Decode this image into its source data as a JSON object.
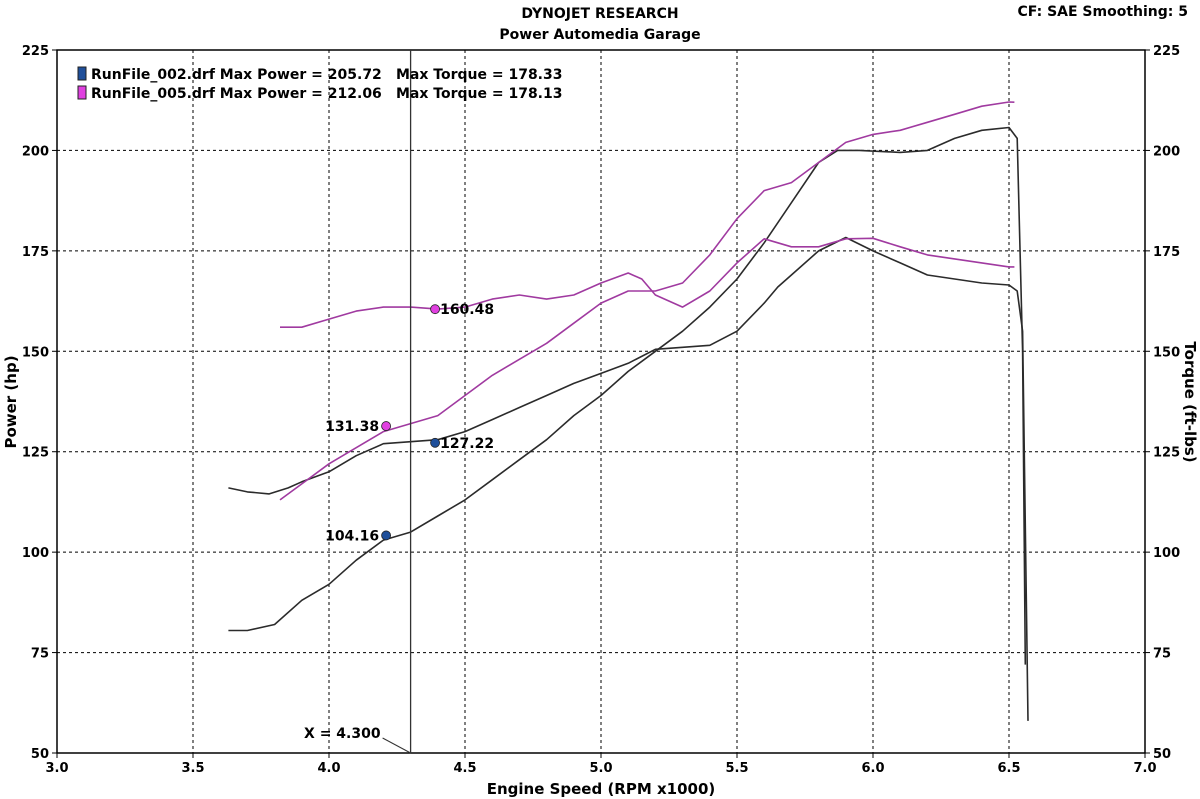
{
  "header": {
    "title": "DYNOJET RESEARCH",
    "subtitle": "Power Automedia Garage",
    "corner": "CF: SAE  Smoothing: 5"
  },
  "colors": {
    "run1": "#2b2b2b",
    "run2": "#a03aa0",
    "run1_marker": "#1f4f9a",
    "run2_marker": "#e040e0",
    "grid": "#000000",
    "background": "#ffffff"
  },
  "chart_data": {
    "type": "line",
    "xlabel": "Engine Speed (RPM x1000)",
    "ylabel_left": "Power (hp)",
    "ylabel_right": "Torque (ft-lbs)",
    "xlim": [
      3.0,
      7.0
    ],
    "ylim": [
      50,
      225
    ],
    "x_ticks": [
      "3.0",
      "3.5",
      "4.0",
      "4.5",
      "5.0",
      "5.5",
      "6.0",
      "6.5",
      "7.0"
    ],
    "y_ticks": [
      "50",
      "75",
      "100",
      "125",
      "150",
      "175",
      "200",
      "225"
    ],
    "grid": true,
    "cursor": {
      "x": 4.3,
      "label": "X = 4.300"
    },
    "legend": [
      {
        "text": "RunFile_002.drf Max Power = 205.72",
        "torque_text": "Max Torque = 178.33"
      },
      {
        "text": "RunFile_005.drf Max Power = 212.06",
        "torque_text": "Max Torque = 178.13"
      }
    ],
    "series": [
      {
        "name": "RunFile_002.drf",
        "quantity": "power",
        "x": [
          3.63,
          3.7,
          3.8,
          3.9,
          4.0,
          4.1,
          4.2,
          4.3,
          4.4,
          4.5,
          4.6,
          4.7,
          4.8,
          4.9,
          5.0,
          5.1,
          5.2,
          5.3,
          5.4,
          5.5,
          5.6,
          5.7,
          5.8,
          5.87,
          5.95,
          6.1,
          6.2,
          6.3,
          6.4,
          6.5,
          6.53,
          6.55,
          6.56
        ],
        "y": [
          80.5,
          80.5,
          82,
          88,
          92,
          98,
          103,
          105,
          109,
          113,
          118,
          123,
          128,
          134,
          139,
          145,
          150,
          155,
          161,
          168,
          177,
          187,
          197,
          200,
          200,
          199.5,
          200,
          203,
          205,
          205.72,
          203,
          150,
          72
        ]
      },
      {
        "name": "RunFile_002.drf",
        "quantity": "torque",
        "x": [
          3.63,
          3.7,
          3.78,
          3.85,
          3.9,
          4.0,
          4.1,
          4.2,
          4.3,
          4.4,
          4.5,
          4.6,
          4.7,
          4.8,
          4.9,
          5.0,
          5.1,
          5.2,
          5.3,
          5.4,
          5.5,
          5.6,
          5.65,
          5.7,
          5.8,
          5.9,
          6.0,
          6.1,
          6.2,
          6.3,
          6.4,
          6.5,
          6.53,
          6.55,
          6.57
        ],
        "y": [
          116,
          115,
          114.5,
          116,
          117.5,
          120,
          124,
          127,
          127.5,
          128,
          130,
          133,
          136,
          139,
          142,
          144.5,
          147,
          150.5,
          151,
          151.5,
          155,
          162,
          166,
          169,
          175,
          178.33,
          175,
          172,
          169,
          168,
          167,
          166.5,
          165,
          155,
          58
        ]
      },
      {
        "name": "RunFile_005.drf",
        "quantity": "power",
        "x": [
          3.82,
          3.9,
          4.0,
          4.1,
          4.2,
          4.3,
          4.4,
          4.5,
          4.6,
          4.7,
          4.8,
          4.9,
          5.0,
          5.1,
          5.2,
          5.3,
          5.4,
          5.5,
          5.6,
          5.7,
          5.8,
          5.9,
          6.0,
          6.1,
          6.2,
          6.3,
          6.4,
          6.5,
          6.52
        ],
        "y": [
          113,
          117,
          122,
          126,
          130,
          132,
          134,
          139,
          144,
          148,
          152,
          157,
          162,
          165,
          165,
          167,
          174,
          183,
          190,
          192,
          197,
          202,
          204,
          205,
          207,
          209,
          211,
          212.06,
          212
        ]
      },
      {
        "name": "RunFile_005.drf",
        "quantity": "torque",
        "x": [
          3.82,
          3.9,
          4.0,
          4.1,
          4.2,
          4.3,
          4.4,
          4.5,
          4.6,
          4.7,
          4.8,
          4.9,
          5.0,
          5.1,
          5.15,
          5.2,
          5.3,
          5.4,
          5.5,
          5.6,
          5.7,
          5.8,
          5.9,
          6.0,
          6.1,
          6.2,
          6.3,
          6.4,
          6.5,
          6.52
        ],
        "y": [
          156,
          156,
          158,
          160,
          161,
          161,
          160.5,
          161,
          163,
          164,
          163,
          164,
          167,
          169.5,
          168,
          164,
          161,
          165,
          172,
          178,
          176,
          176,
          178,
          178.13,
          176,
          174,
          173,
          172,
          171,
          171
        ]
      }
    ],
    "markers": [
      {
        "x": 4.39,
        "y": 160.48,
        "label": "160.48",
        "series": "run2",
        "label_side": "right"
      },
      {
        "x": 4.21,
        "y": 131.38,
        "label": "131.38",
        "series": "run2",
        "label_side": "left"
      },
      {
        "x": 4.39,
        "y": 127.22,
        "label": "127.22",
        "series": "run1",
        "label_side": "right"
      },
      {
        "x": 4.21,
        "y": 104.16,
        "label": "104.16",
        "series": "run1",
        "label_side": "left"
      }
    ]
  }
}
